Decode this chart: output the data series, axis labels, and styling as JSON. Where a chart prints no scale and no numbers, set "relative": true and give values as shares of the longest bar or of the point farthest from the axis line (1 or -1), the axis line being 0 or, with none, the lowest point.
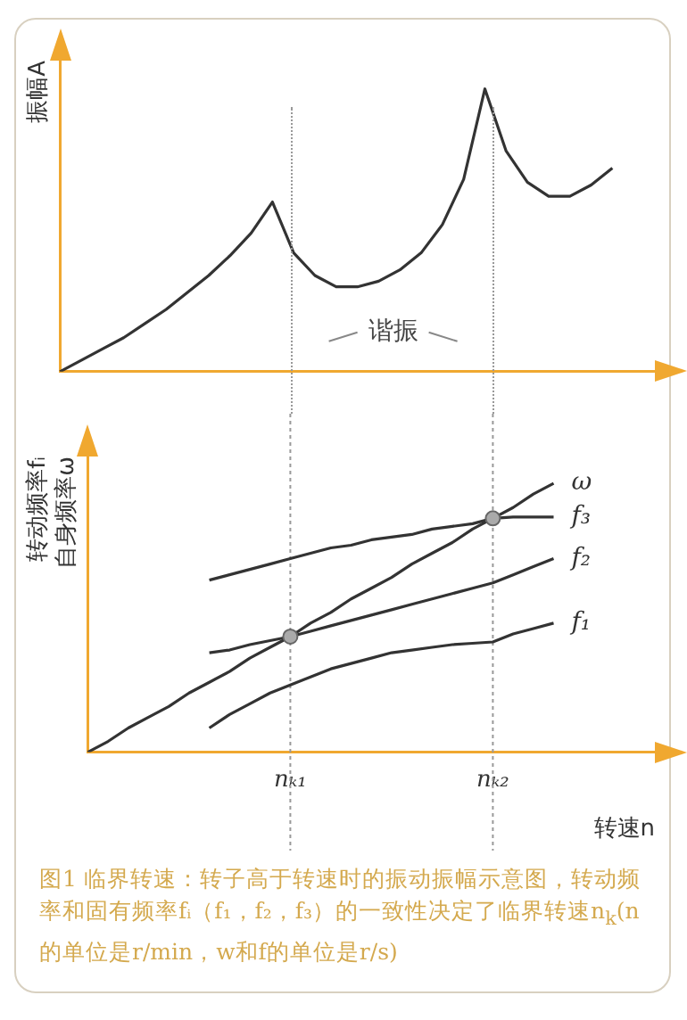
{
  "chart_data": [
    {
      "type": "line",
      "relative": true,
      "ylabel": "振幅A",
      "marker": "none",
      "line_style": "solid",
      "categories": [
        null,
        null,
        null,
        null,
        null,
        null,
        null,
        null,
        null,
        null,
        null,
        null,
        null,
        null,
        null,
        null,
        null,
        null,
        null,
        null,
        null,
        null,
        null,
        null,
        null,
        null,
        null,
        null,
        null
      ],
      "series": [
        {
          "color": "#333333",
          "values": [
            0,
            0.04,
            0.08,
            0.12,
            0.17,
            0.22,
            0.28,
            0.34,
            0.41,
            0.49,
            0.6,
            0.42,
            0.34,
            0.3,
            0.3,
            0.32,
            0.36,
            0.42,
            0.52,
            0.68,
            1,
            0.78,
            0.67,
            0.62,
            0.62,
            0.66,
            0.72,
            null,
            null
          ]
        }
      ],
      "annotations": [
        "谐振"
      ]
    },
    {
      "type": "line",
      "relative": true,
      "ylabel": "转动频率fᵢ\n自身频率ω",
      "xlabel": "转速n",
      "tick_labels": "x",
      "line_style": "solid",
      "categories": [
        null,
        null,
        null,
        null,
        null,
        null,
        null,
        null,
        null,
        null,
        "nₖ₁",
        null,
        null,
        null,
        null,
        null,
        null,
        null,
        null,
        null,
        "nₖ₂",
        null,
        null,
        null,
        null,
        null,
        null,
        null,
        null
      ],
      "series": [
        {
          "name": "ω",
          "color": "#333333",
          "values": [
            0,
            0.04,
            0.09,
            0.13,
            0.17,
            0.22,
            0.26,
            0.3,
            0.35,
            0.39,
            0.43,
            0.48,
            0.52,
            0.57,
            0.61,
            0.65,
            0.7,
            0.74,
            0.78,
            0.83,
            0.87,
            0.91,
            0.96,
            1,
            null,
            null,
            null,
            null,
            null
          ]
        },
        {
          "name": "f₃",
          "color": "#333333",
          "values": [
            null,
            null,
            null,
            null,
            null,
            null,
            0.64,
            0.66,
            0.68,
            0.7,
            0.72,
            0.74,
            0.76,
            0.77,
            0.79,
            0.8,
            0.81,
            0.83,
            0.84,
            0.85,
            0.87,
            0.875,
            0.875,
            0.875,
            null,
            null,
            null,
            null,
            null
          ]
        },
        {
          "name": "f₂",
          "color": "#333333",
          "values": [
            null,
            null,
            null,
            null,
            null,
            null,
            0.37,
            0.38,
            0.4,
            0.415,
            0.43,
            0.45,
            0.47,
            0.49,
            0.51,
            0.53,
            0.55,
            0.57,
            0.59,
            0.61,
            0.63,
            0.66,
            0.69,
            0.72,
            null,
            null,
            null,
            null,
            null
          ]
        },
        {
          "name": "f₁",
          "color": "#333333",
          "values": [
            null,
            null,
            null,
            null,
            null,
            null,
            0.09,
            0.14,
            0.18,
            0.22,
            0.25,
            0.28,
            0.31,
            0.33,
            0.35,
            0.37,
            0.38,
            0.39,
            0.4,
            0.405,
            0.41,
            0.44,
            0.46,
            0.48,
            null,
            null,
            null,
            null,
            null
          ]
        },
        {
          "type": "scatter",
          "color": "#aaaaaa",
          "x": [
            "nₖ₁",
            "nₖ₂"
          ],
          "values": [
            0.43,
            0.87
          ]
        }
      ],
      "ref_lines": [
        {
          "axis": "x",
          "value": "nₖ₁",
          "color": "#999999",
          "line_style": "dotted"
        },
        {
          "axis": "x",
          "value": "nₖ₂",
          "color": "#999999",
          "line_style": "dotted"
        }
      ],
      "annotations": [
        "图1 临界转速：转子高于转速时的振动振幅示意图，转动频率和固有频率fᵢ（f₁，f₂，f₃）的一致性决定了临界转速n$_{k}$(n的单位是r/min，w和f的单位是r/s)"
      ]
    }
  ]
}
